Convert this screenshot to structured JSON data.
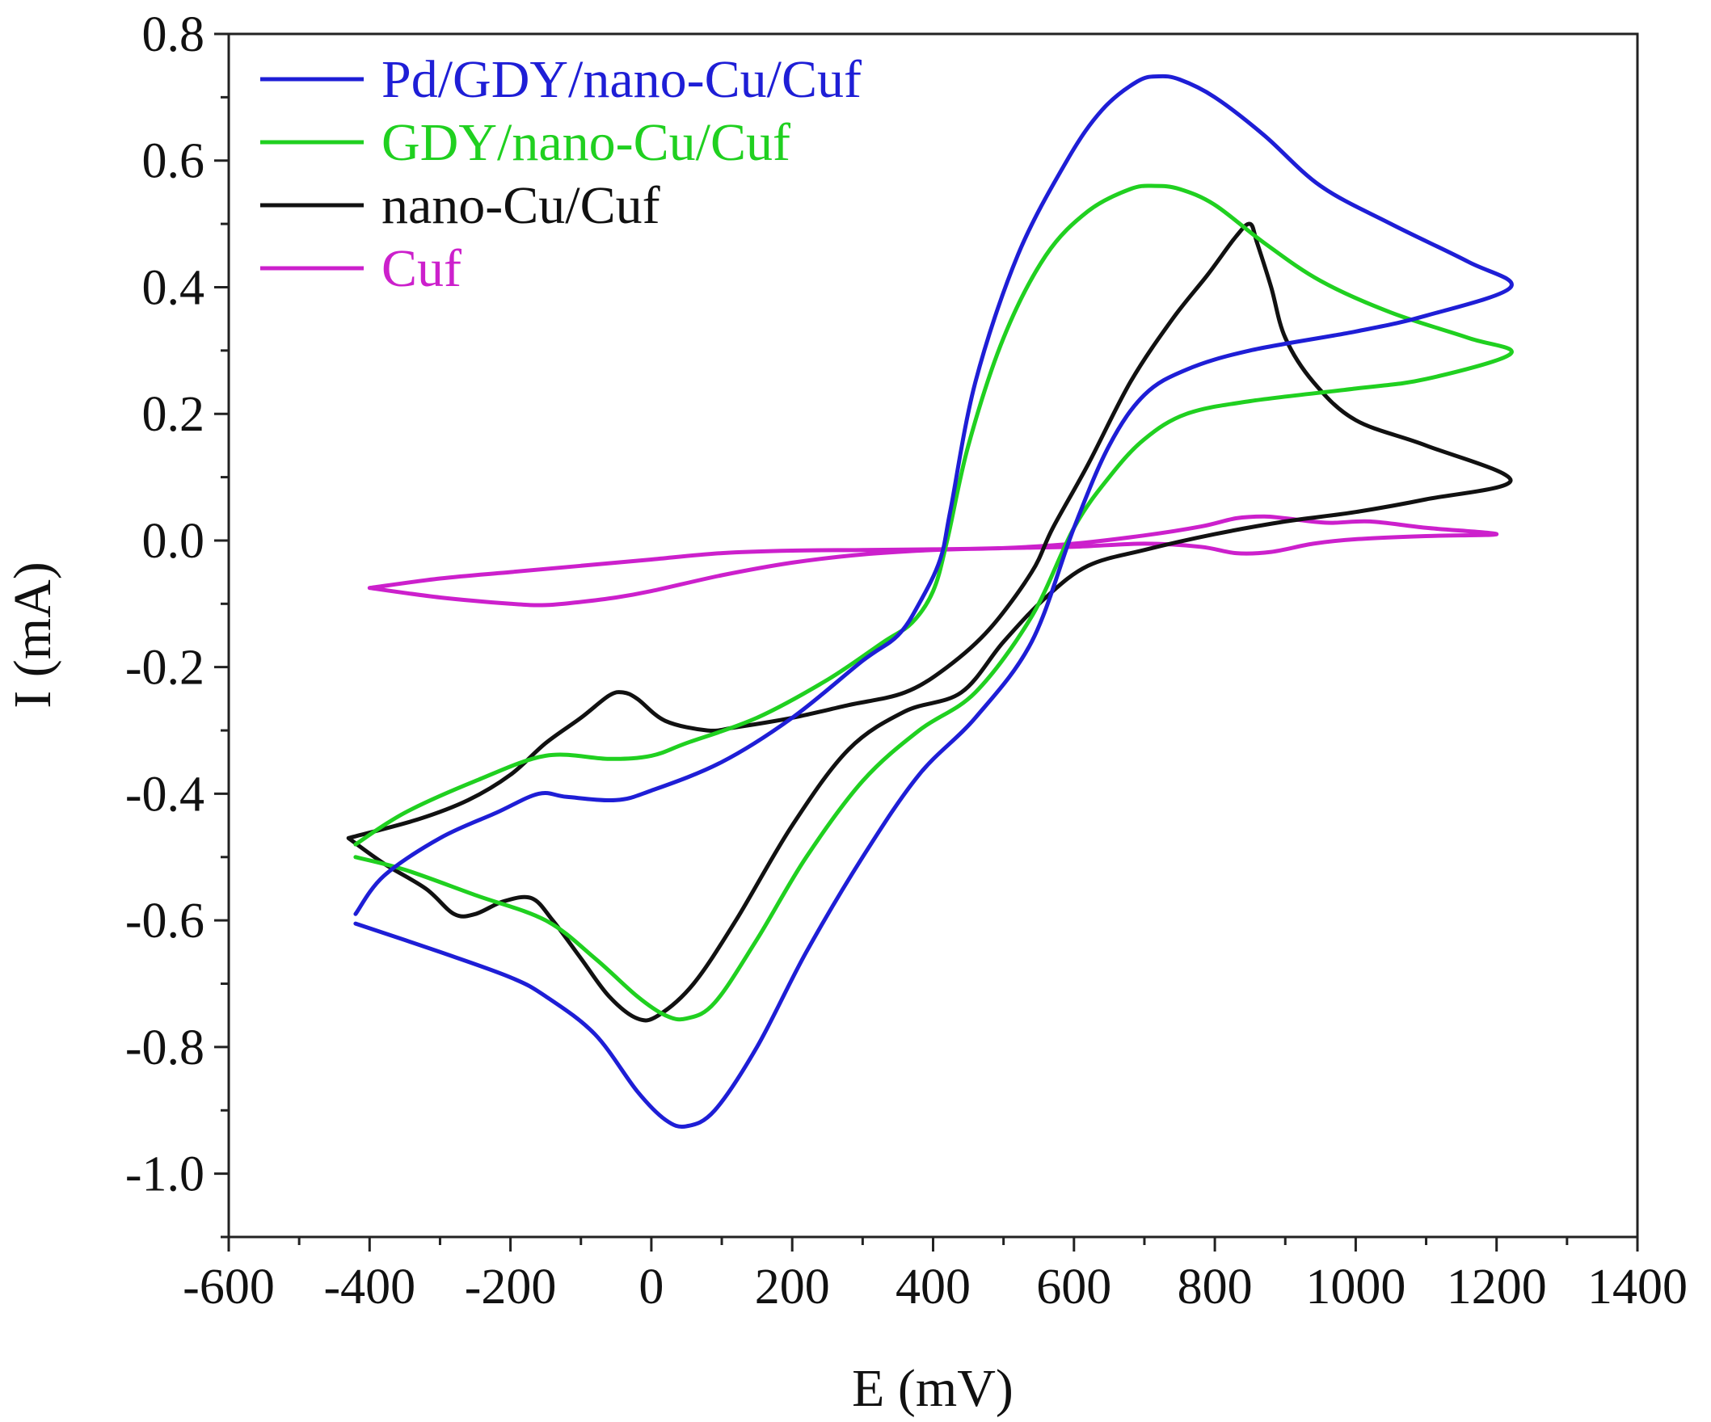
{
  "chart_data": {
    "type": "line",
    "xlabel": "E (mV)",
    "ylabel": "I (mA)",
    "xlim": [
      -600,
      1400
    ],
    "ylim": [
      -1.1,
      0.8
    ],
    "x_ticks": [
      -600,
      -400,
      -200,
      0,
      200,
      400,
      600,
      800,
      1000,
      1200,
      1400
    ],
    "x_tick_labels": [
      "-600",
      "-400",
      "-200",
      "0",
      "200",
      "400",
      "600",
      "800",
      "1000",
      "1200",
      "1400"
    ],
    "y_ticks": [
      0.8,
      0.6,
      0.4,
      0.2,
      0.0,
      -0.2,
      -0.4,
      -0.6,
      -0.8,
      -1.0
    ],
    "y_tick_labels": [
      "0.8",
      "0.6",
      "0.4",
      "0.2",
      "0.0",
      "-0.2",
      "-0.4",
      "-0.6",
      "-0.8",
      "-1.0"
    ],
    "legend_position": "top-left",
    "series": [
      {
        "name": "Pd/GDY/nano-Cu/Cuf",
        "color": "#1e1ed6",
        "points": [
          [
            -420,
            -0.605
          ],
          [
            -300,
            -0.65
          ],
          [
            -200,
            -0.69
          ],
          [
            -150,
            -0.72
          ],
          [
            -80,
            -0.78
          ],
          [
            -20,
            -0.87
          ],
          [
            20,
            -0.915
          ],
          [
            50,
            -0.925
          ],
          [
            90,
            -0.9
          ],
          [
            150,
            -0.8
          ],
          [
            220,
            -0.65
          ],
          [
            300,
            -0.5
          ],
          [
            380,
            -0.37
          ],
          [
            460,
            -0.28
          ],
          [
            540,
            -0.16
          ],
          [
            600,
            0.02
          ],
          [
            650,
            0.15
          ],
          [
            700,
            0.23
          ],
          [
            760,
            0.27
          ],
          [
            850,
            0.3
          ],
          [
            1000,
            0.33
          ],
          [
            1100,
            0.355
          ],
          [
            1220,
            0.4
          ],
          [
            1160,
            0.44
          ],
          [
            1050,
            0.5
          ],
          [
            950,
            0.56
          ],
          [
            870,
            0.64
          ],
          [
            800,
            0.7
          ],
          [
            750,
            0.728
          ],
          [
            720,
            0.733
          ],
          [
            690,
            0.725
          ],
          [
            640,
            0.68
          ],
          [
            590,
            0.6
          ],
          [
            520,
            0.45
          ],
          [
            460,
            0.25
          ],
          [
            425,
            0.05
          ],
          [
            410,
            -0.03
          ],
          [
            380,
            -0.1
          ],
          [
            350,
            -0.15
          ],
          [
            300,
            -0.19
          ],
          [
            200,
            -0.28
          ],
          [
            100,
            -0.35
          ],
          [
            0,
            -0.395
          ],
          [
            -50,
            -0.41
          ],
          [
            -120,
            -0.405
          ],
          [
            -160,
            -0.4
          ],
          [
            -220,
            -0.43
          ],
          [
            -300,
            -0.47
          ],
          [
            -380,
            -0.53
          ],
          [
            -420,
            -0.59
          ]
        ]
      },
      {
        "name": "GDY/nano-Cu/Cuf",
        "color": "#20d020",
        "points": [
          [
            -420,
            -0.5
          ],
          [
            -350,
            -0.52
          ],
          [
            -250,
            -0.56
          ],
          [
            -150,
            -0.6
          ],
          [
            -80,
            -0.66
          ],
          [
            -20,
            -0.72
          ],
          [
            20,
            -0.75
          ],
          [
            50,
            -0.755
          ],
          [
            90,
            -0.73
          ],
          [
            150,
            -0.63
          ],
          [
            220,
            -0.5
          ],
          [
            300,
            -0.38
          ],
          [
            380,
            -0.3
          ],
          [
            460,
            -0.24
          ],
          [
            540,
            -0.12
          ],
          [
            600,
            0.02
          ],
          [
            650,
            0.1
          ],
          [
            700,
            0.16
          ],
          [
            760,
            0.2
          ],
          [
            850,
            0.22
          ],
          [
            1000,
            0.24
          ],
          [
            1100,
            0.255
          ],
          [
            1220,
            0.295
          ],
          [
            1160,
            0.32
          ],
          [
            1050,
            0.36
          ],
          [
            950,
            0.41
          ],
          [
            870,
            0.47
          ],
          [
            800,
            0.53
          ],
          [
            750,
            0.555
          ],
          [
            715,
            0.56
          ],
          [
            680,
            0.555
          ],
          [
            620,
            0.52
          ],
          [
            560,
            0.45
          ],
          [
            500,
            0.32
          ],
          [
            450,
            0.15
          ],
          [
            420,
            0.0
          ],
          [
            400,
            -0.08
          ],
          [
            370,
            -0.13
          ],
          [
            330,
            -0.16
          ],
          [
            250,
            -0.22
          ],
          [
            150,
            -0.28
          ],
          [
            50,
            -0.32
          ],
          [
            0,
            -0.34
          ],
          [
            -60,
            -0.345
          ],
          [
            -150,
            -0.34
          ],
          [
            -250,
            -0.38
          ],
          [
            -350,
            -0.43
          ],
          [
            -420,
            -0.48
          ]
        ]
      },
      {
        "name": "nano-Cu/Cuf",
        "color": "#111111",
        "points": [
          [
            -430,
            -0.47
          ],
          [
            -380,
            -0.51
          ],
          [
            -320,
            -0.55
          ],
          [
            -280,
            -0.59
          ],
          [
            -250,
            -0.59
          ],
          [
            -210,
            -0.57
          ],
          [
            -170,
            -0.565
          ],
          [
            -140,
            -0.6
          ],
          [
            -100,
            -0.66
          ],
          [
            -60,
            -0.72
          ],
          [
            -20,
            -0.755
          ],
          [
            10,
            -0.75
          ],
          [
            60,
            -0.7
          ],
          [
            120,
            -0.6
          ],
          [
            200,
            -0.45
          ],
          [
            280,
            -0.33
          ],
          [
            360,
            -0.27
          ],
          [
            440,
            -0.24
          ],
          [
            500,
            -0.16
          ],
          [
            560,
            -0.09
          ],
          [
            620,
            -0.04
          ],
          [
            700,
            -0.015
          ],
          [
            800,
            0.01
          ],
          [
            900,
            0.03
          ],
          [
            1000,
            0.045
          ],
          [
            1100,
            0.065
          ],
          [
            1220,
            0.095
          ],
          [
            1100,
            0.15
          ],
          [
            1000,
            0.19
          ],
          [
            940,
            0.25
          ],
          [
            900,
            0.32
          ],
          [
            880,
            0.4
          ],
          [
            860,
            0.47
          ],
          [
            850,
            0.5
          ],
          [
            830,
            0.48
          ],
          [
            790,
            0.42
          ],
          [
            740,
            0.35
          ],
          [
            680,
            0.25
          ],
          [
            620,
            0.12
          ],
          [
            570,
            0.02
          ],
          [
            540,
            -0.05
          ],
          [
            480,
            -0.14
          ],
          [
            420,
            -0.2
          ],
          [
            360,
            -0.24
          ],
          [
            280,
            -0.26
          ],
          [
            200,
            -0.28
          ],
          [
            120,
            -0.295
          ],
          [
            80,
            -0.3
          ],
          [
            20,
            -0.285
          ],
          [
            -20,
            -0.25
          ],
          [
            -40,
            -0.24
          ],
          [
            -60,
            -0.245
          ],
          [
            -100,
            -0.28
          ],
          [
            -150,
            -0.32
          ],
          [
            -200,
            -0.37
          ],
          [
            -260,
            -0.41
          ],
          [
            -330,
            -0.44
          ],
          [
            -430,
            -0.47
          ]
        ]
      },
      {
        "name": "Cuf",
        "color": "#cc20cc",
        "points": [
          [
            -400,
            -0.075
          ],
          [
            -300,
            -0.09
          ],
          [
            -200,
            -0.1
          ],
          [
            -150,
            -0.102
          ],
          [
            -100,
            -0.097
          ],
          [
            -50,
            -0.09
          ],
          [
            0,
            -0.08
          ],
          [
            100,
            -0.055
          ],
          [
            200,
            -0.035
          ],
          [
            300,
            -0.022
          ],
          [
            400,
            -0.015
          ],
          [
            500,
            -0.012
          ],
          [
            600,
            -0.01
          ],
          [
            700,
            -0.005
          ],
          [
            780,
            -0.01
          ],
          [
            830,
            -0.02
          ],
          [
            880,
            -0.018
          ],
          [
            940,
            -0.005
          ],
          [
            1000,
            0.002
          ],
          [
            1100,
            0.007
          ],
          [
            1200,
            0.01
          ],
          [
            1100,
            0.02
          ],
          [
            1020,
            0.03
          ],
          [
            960,
            0.028
          ],
          [
            900,
            0.035
          ],
          [
            870,
            0.038
          ],
          [
            830,
            0.035
          ],
          [
            780,
            0.022
          ],
          [
            700,
            0.008
          ],
          [
            600,
            -0.005
          ],
          [
            500,
            -0.012
          ],
          [
            400,
            -0.014
          ],
          [
            300,
            -0.015
          ],
          [
            200,
            -0.016
          ],
          [
            100,
            -0.02
          ],
          [
            0,
            -0.03
          ],
          [
            -100,
            -0.04
          ],
          [
            -200,
            -0.05
          ],
          [
            -300,
            -0.06
          ],
          [
            -400,
            -0.075
          ]
        ]
      }
    ]
  }
}
